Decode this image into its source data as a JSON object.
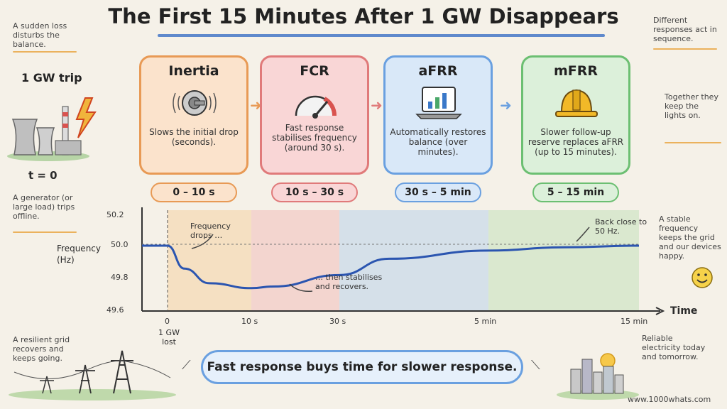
{
  "title": "The First 15 Minutes After 1 GW Disappears",
  "notes": {
    "top_left": "A sudden loss disturbs the balance.",
    "top_right_1": "Different responses act in sequence.",
    "top_right_2": "Together they keep the lights on.",
    "mid_left": "A generator (or large load) trips offline.",
    "mid_right": "A stable frequency keeps the grid and our devices happy.",
    "bottom_left": "A resilient grid recovers and keeps going.",
    "bottom_right": "Reliable electricity today and tomorrow."
  },
  "trip": {
    "label": "1 GW trip",
    "t0": "t = 0"
  },
  "cards": [
    {
      "title": "Inertia",
      "desc": "Slows the initial drop (seconds).",
      "time": "0 – 10 s",
      "color": "#e89a55",
      "fill": "#fbe3cc",
      "icon": "flywheel-icon"
    },
    {
      "title": "FCR",
      "desc": "Fast response stabilises frequency (around 30 s).",
      "time": "10 s – 30 s",
      "color": "#e07a7a",
      "fill": "#f9d6d6",
      "icon": "gauge-icon"
    },
    {
      "title": "aFRR",
      "desc": "Automatically restores balance (over minutes).",
      "time": "30 s – 5 min",
      "color": "#6aa0e0",
      "fill": "#d9e8f8",
      "icon": "laptop-chart-icon"
    },
    {
      "title": "mFRR",
      "desc": "Slower follow-up reserve replaces aFRR (up to 15 minutes).",
      "time": "5 – 15 min",
      "color": "#6cbf72",
      "fill": "#dcf0da",
      "icon": "hard-hat-icon"
    }
  ],
  "chart_data": {
    "type": "line",
    "ylabel": "Frequency (Hz)",
    "xlabel": "Time",
    "y_ticks": [
      "50.2",
      "50.0",
      "49.8",
      "49.6"
    ],
    "x_ticks": [
      "0",
      "10 s",
      "30 s",
      "5 min",
      "15 min"
    ],
    "x_sub_label": "1 GW lost",
    "ylim": [
      49.6,
      50.2
    ],
    "series": [
      {
        "x": [
          "-2 s",
          "0",
          "2 s",
          "5 s",
          "10 s",
          "15 s",
          "30 s",
          "2 min",
          "5 min",
          "10 min",
          "15 min"
        ],
        "y": [
          50.0,
          50.0,
          49.86,
          49.77,
          49.74,
          49.75,
          49.82,
          49.92,
          49.97,
          49.99,
          50.0
        ]
      }
    ],
    "annotations": [
      "Frequency drops …",
      "… then stabilises and recovers.",
      "Back close to 50 Hz."
    ],
    "reference_line": 50.0
  },
  "banner": "Fast response buys time for slower response.",
  "footer": "www.1000whats.com"
}
